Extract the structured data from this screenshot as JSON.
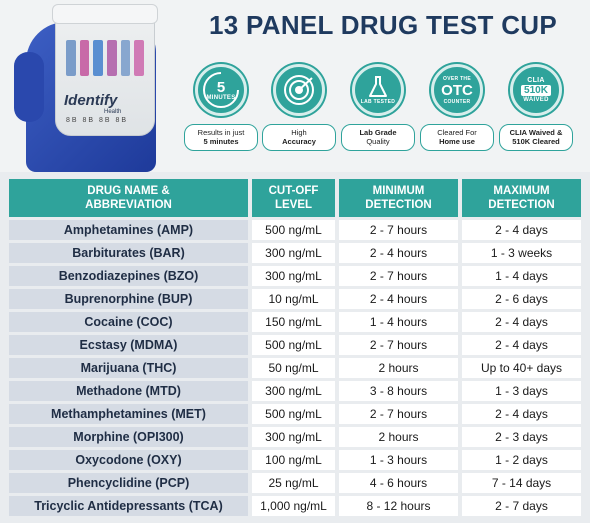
{
  "title": "13 PANEL DRUG TEST CUP",
  "product": {
    "brand": "Identify",
    "brand_sub": "Health",
    "marks": "8B 8B 8B 8B"
  },
  "badges": [
    {
      "icon": "clock-icon",
      "icon_main": "5",
      "icon_sub": "MINUTES",
      "caption_line1": "Results in just",
      "caption_line2": "5 minutes"
    },
    {
      "icon": "target-icon",
      "icon_main": "",
      "icon_sub": "",
      "caption_line1": "High",
      "caption_line2": "Accuracy"
    },
    {
      "icon": "flask-icon",
      "icon_main": "",
      "icon_sub": "LAB TESTED",
      "caption_line1": "Lab Grade",
      "caption_line2": "Quality"
    },
    {
      "icon": "otc-icon",
      "icon_top": "OVER THE",
      "icon_main": "OTC",
      "icon_sub": "COUNTER",
      "caption_line1": "Cleared For",
      "caption_line2": "Home use"
    },
    {
      "icon": "clia-icon",
      "icon_top": "CLIA",
      "icon_main": "510K",
      "icon_sub": "WAIVED",
      "caption_line1": "CLIA Waived &",
      "caption_line2": "510K Cleared"
    }
  ],
  "table": {
    "headers": [
      {
        "line1": "DRUG NAME &",
        "line2": "ABBREVIATION"
      },
      {
        "line1": "CUT-OFF",
        "line2": "LEVEL"
      },
      {
        "line1": "MINIMUM",
        "line2": "DETECTION"
      },
      {
        "line1": "MAXIMUM",
        "line2": "DETECTION"
      }
    ],
    "rows": [
      [
        "Amphetamines (AMP)",
        "500 ng/mL",
        "2 - 7 hours",
        "2 - 4 days"
      ],
      [
        "Barbiturates (BAR)",
        "300 ng/mL",
        "2 - 4 hours",
        "1 - 3 weeks"
      ],
      [
        "Benzodiazepines (BZO)",
        "300 ng/mL",
        "2 - 7 hours",
        "1 - 4 days"
      ],
      [
        "Buprenorphine (BUP)",
        "10 ng/mL",
        "2 - 4 hours",
        "2 - 6 days"
      ],
      [
        "Cocaine (COC)",
        "150 ng/mL",
        "1 - 4 hours",
        "2 - 4 days"
      ],
      [
        "Ecstasy (MDMA)",
        "500 ng/mL",
        "2 - 7 hours",
        "2 - 4 days"
      ],
      [
        "Marijuana (THC)",
        "50 ng/mL",
        "2 hours",
        "Up to 40+ days"
      ],
      [
        "Methadone (MTD)",
        "300 ng/mL",
        "3 - 8 hours",
        "1 - 3 days"
      ],
      [
        "Methamphetamines (MET)",
        "500 ng/mL",
        "2 - 7 hours",
        "2 - 4 days"
      ],
      [
        "Morphine (OPI300)",
        "300 ng/mL",
        "2 hours",
        "2 - 3 days"
      ],
      [
        "Oxycodone (OXY)",
        "100 ng/mL",
        "1 - 3 hours",
        "1 - 2 days"
      ],
      [
        "Phencyclidine (PCP)",
        "25 ng/mL",
        "4 - 6 hours",
        "7 - 14 days"
      ],
      [
        "Tricyclic Antidepressants (TCA)",
        "1,000 ng/mL",
        "8 - 12 hours",
        "2 - 7 days"
      ]
    ]
  },
  "colors": {
    "accent": "#2fa39b",
    "title": "#1f3a5f",
    "name_cell": "#d5dbe4"
  }
}
